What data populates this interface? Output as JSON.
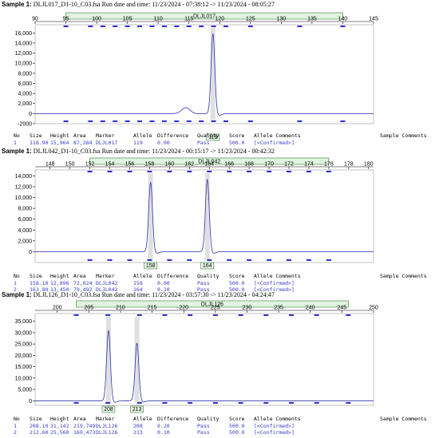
{
  "samples": [
    {
      "label": "Sample 1:",
      "file": "DLJL017_D1-10_C03.fsa",
      "run_text": "Run date and time: 11/23/2024 - 07:38:12 -> 11/23/2024 - 08:05:27"
    },
    {
      "label": "Sample 1:",
      "file": "DLJL042_D1-10_C03.fsa",
      "run_text": "Run date and time: 11/23/2024 - 00:15:17 -> 11/23/2024 - 00:42:32"
    },
    {
      "label": "Sample 1:",
      "file": "DLJL126_D1-10_C03.fsa",
      "run_text": "Run date and time: 11/23/2024 - 03:57:30 -> 11/23/2024 - 04:24:47"
    }
  ],
  "table_headers": [
    "No",
    "Size",
    "Height",
    "Area",
    "Marker",
    "Allele",
    "Difference",
    "Quality",
    "Score",
    "Allele Comments",
    "Sample Comments"
  ],
  "tables": [
    [
      [
        "1",
        "118.90",
        "15,964",
        "87,284",
        "DLJL017",
        "119",
        "0.00",
        "Pass",
        "500.0",
        "[<Confirmed>]",
        ""
      ]
    ],
    [
      [
        "1",
        "158.10",
        "12,896",
        "72,024",
        "DLJL042",
        "158",
        "0.00",
        "Pass",
        "500.0",
        "[<Confirmed>]",
        ""
      ],
      [
        "2",
        "163.80",
        "13,450",
        "79,492",
        "DLJL042",
        "164",
        "0.10",
        "Pass",
        "500.0",
        "[<Confirmed>]",
        ""
      ]
    ],
    [
      [
        "1",
        "208.10",
        "31,142",
        "219,749",
        "DLJL126",
        "208",
        "0.20",
        "Pass",
        "500.0",
        "[<Confirmed>]",
        ""
      ],
      [
        "2",
        "212.60",
        "25,560",
        "169,473",
        "DLJL126",
        "213",
        "0.10",
        "Pass",
        "500.0",
        "[<Confirmed>]",
        ""
      ]
    ]
  ],
  "chart_data": [
    {
      "type": "line",
      "marker": "DLJL017",
      "xlim": [
        90,
        145
      ],
      "x_ticks": [
        90,
        95,
        100,
        105,
        110,
        115,
        120,
        125,
        130,
        135,
        140,
        145
      ],
      "ylim": [
        -2000,
        17000
      ],
      "y_ticks": [
        -2000,
        0,
        2000,
        4000,
        6000,
        8000,
        10000,
        12000,
        14000,
        16000
      ],
      "y_tick_labels": [
        "-2000",
        "0",
        "2,000",
        "4,000",
        "6,000",
        "8,000",
        "10,000",
        "12,000",
        "14,000",
        "16,000"
      ],
      "marker_range": [
        95,
        140
      ],
      "bins": [
        95,
        99,
        101,
        103,
        105,
        107,
        109,
        111,
        113,
        115,
        117,
        119,
        121,
        125,
        133,
        140
      ],
      "peaks": [
        {
          "x": 118.9,
          "height": 15964,
          "label": "119",
          "called": true
        },
        {
          "x": 114.5,
          "height": 1200,
          "label": "",
          "called": false
        }
      ],
      "baseline": 0,
      "line_color": "#2f2fb4",
      "marker_bar_color": "#e0f4e0"
    },
    {
      "type": "line",
      "marker": "DLJL042",
      "xlim": [
        146.5,
        180.5
      ],
      "x_ticks": [
        148,
        150,
        152,
        154,
        156,
        158,
        160,
        162,
        164,
        166,
        168,
        170,
        172,
        174,
        176,
        178,
        180
      ],
      "ylim": [
        -2000,
        14500
      ],
      "y_ticks": [
        0,
        2000,
        4000,
        6000,
        8000,
        10000,
        12000,
        14000
      ],
      "y_tick_labels": [
        "0",
        "2,000",
        "4,000",
        "6,000",
        "8,000",
        "10,000",
        "12,000",
        "14,000"
      ],
      "marker_range": [
        152,
        176
      ],
      "bins": [
        152,
        154,
        156,
        158,
        160,
        162,
        164,
        166,
        168,
        170,
        172,
        174,
        176
      ],
      "peaks": [
        {
          "x": 158.1,
          "height": 12896,
          "label": "158",
          "called": true
        },
        {
          "x": 163.8,
          "height": 13450,
          "label": "164",
          "called": true
        }
      ],
      "baseline": 0,
      "line_color": "#2f2fb4",
      "marker_bar_color": "#e0f4e0"
    },
    {
      "type": "line",
      "marker": "DLJL126",
      "xlim": [
        196.5,
        250
      ],
      "x_ticks": [
        200,
        205,
        210,
        215,
        220,
        225,
        230,
        235,
        240,
        245,
        250
      ],
      "ylim": [
        -2000,
        37000
      ],
      "y_ticks": [
        0,
        5000,
        10000,
        15000,
        20000,
        25000,
        30000,
        35000
      ],
      "y_tick_labels": [
        "0",
        "5,000",
        "10,000",
        "15,000",
        "20,000",
        "25,000",
        "30,000",
        "35,000"
      ],
      "marker_range": [
        203,
        246
      ],
      "bins": [
        203,
        208,
        213,
        217,
        221,
        225,
        229,
        233,
        237,
        241,
        246
      ],
      "peaks": [
        {
          "x": 208.1,
          "height": 31142,
          "label": "208",
          "called": true
        },
        {
          "x": 212.6,
          "height": 25560,
          "label": "213",
          "called": true
        }
      ],
      "baseline": 0,
      "line_color": "#2f2fb4",
      "marker_bar_color": "#e0f4e0"
    }
  ]
}
